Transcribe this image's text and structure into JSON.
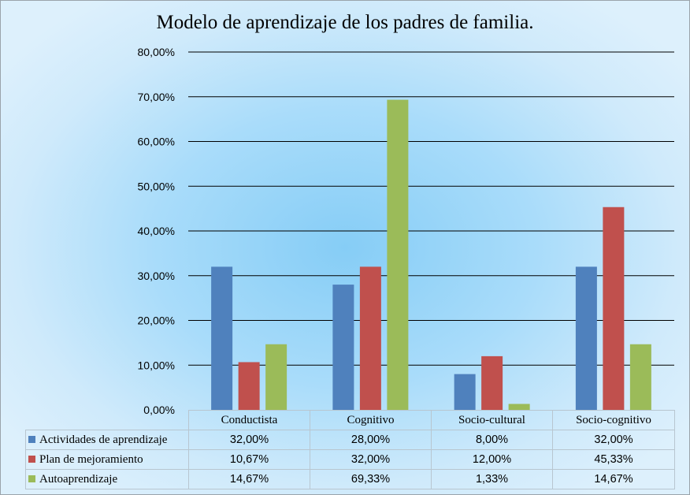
{
  "chart_data": {
    "type": "bar",
    "title": "Modelo de aprendizaje de los padres de familia.",
    "categories": [
      "Conductista",
      "Cognitivo",
      "Socio-cultural",
      "Socio-cognitivo"
    ],
    "ylim": [
      0,
      0.8
    ],
    "y_ticks": [
      0,
      0.1,
      0.2,
      0.3,
      0.4,
      0.5,
      0.6,
      0.7,
      0.8
    ],
    "y_tick_labels": [
      "0,00%",
      "10,00%",
      "20,00%",
      "30,00%",
      "40,00%",
      "50,00%",
      "60,00%",
      "70,00%",
      "80,00%"
    ],
    "grid": true,
    "legend": "data-table-below",
    "series": [
      {
        "name": "Actividades de aprendizaje",
        "color": "#4f81bd",
        "values": [
          0.32,
          0.28,
          0.08,
          0.32
        ],
        "labels": [
          "32,00%",
          "28,00%",
          "8,00%",
          "32,00%"
        ]
      },
      {
        "name": "Plan de mejoramiento",
        "color": "#c0504d",
        "values": [
          0.1067,
          0.32,
          0.12,
          0.4533
        ],
        "labels": [
          "10,67%",
          "32,00%",
          "12,00%",
          "45,33%"
        ]
      },
      {
        "name": "Autoaprendizaje",
        "color": "#9bbb59",
        "values": [
          0.1467,
          0.6933,
          0.0133,
          0.1467
        ],
        "labels": [
          "14,67%",
          "69,33%",
          "1,33%",
          "14,67%"
        ]
      }
    ]
  }
}
